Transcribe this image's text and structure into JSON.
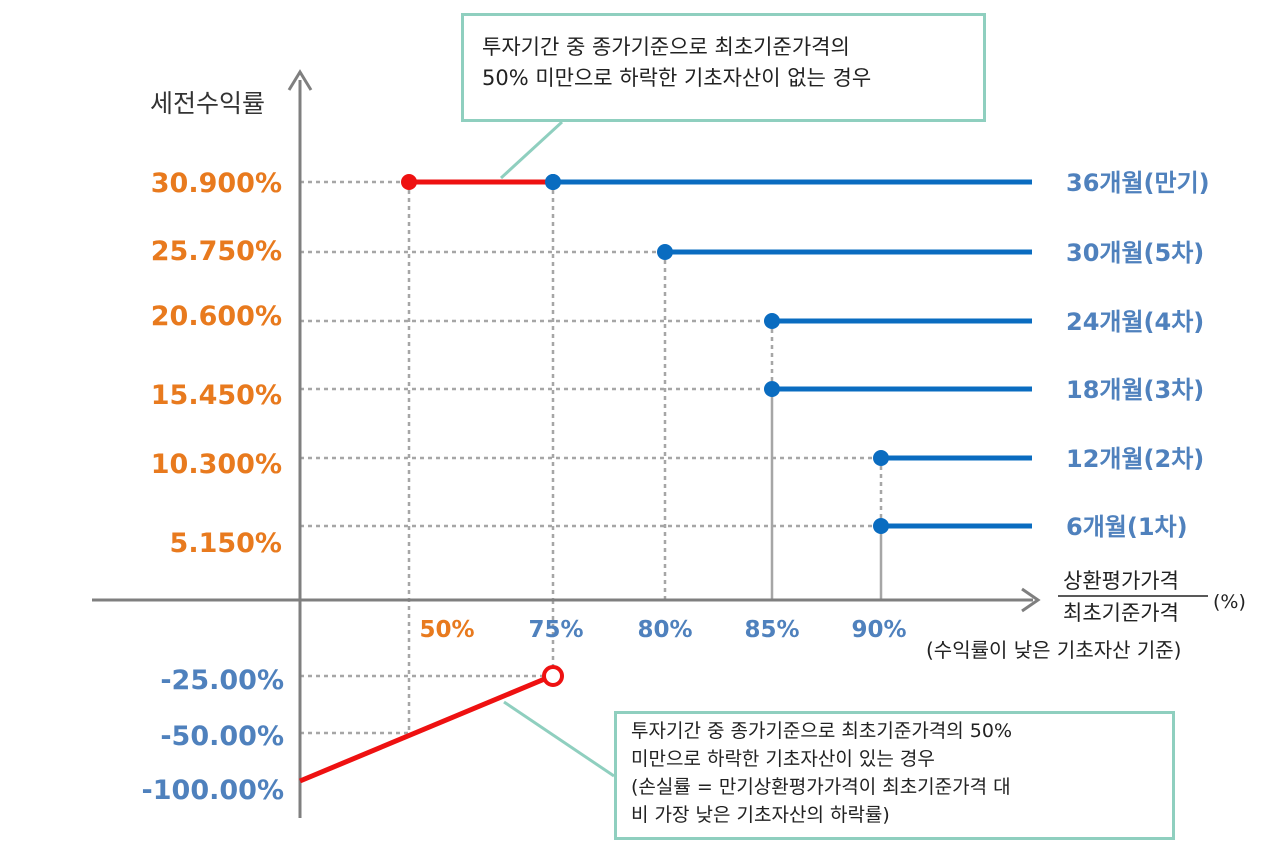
{
  "chart_data": {
    "type": "line",
    "ylabel": "세전수익률",
    "xlabel_top": "상환평가가격",
    "xlabel_bottom": "최초기준가격",
    "xlabel_unit": "(%)",
    "xlabel_note": "(수익률이 낮은 기초자산 기준)",
    "x_ticks": [
      "50%",
      "75%",
      "80%",
      "85%",
      "90%"
    ],
    "y_ticks_positive": [
      "30.900%",
      "25.750%",
      "20.600%",
      "15.450%",
      "10.300%",
      "5.150%"
    ],
    "y_ticks_negative": [
      "-25.00%",
      "-50.00%",
      "-100.00%"
    ],
    "series": [
      {
        "name": "36개월(만기)",
        "x": 75,
        "y": 30.9
      },
      {
        "name": "30개월(5차)",
        "x": 80,
        "y": 25.75
      },
      {
        "name": "24개월(4차)",
        "x": 85,
        "y": 20.6
      },
      {
        "name": "18개월(3차)",
        "x": 85,
        "y": 15.45
      },
      {
        "name": "12개월(2차)",
        "x": 90,
        "y": 10.3
      },
      {
        "name": "6개월(1차)",
        "x": 90,
        "y": 5.15
      }
    ],
    "maturity_no_breach": {
      "from_x": 50,
      "to_x": 75,
      "y": 30.9
    },
    "maturity_breach": {
      "from_x": 0,
      "from_y": -100,
      "to_x": 75,
      "to_y": -25
    }
  },
  "notes": {
    "top": [
      "투자기간 중 종가기준으로 최초기준가격의",
      "50% 미만으로 하락한 기초자산이 없는 경우"
    ],
    "bottom": [
      "투자기간 중 종가기준으로 최초기준가격의 50%",
      "미만으로 하락한 기초자산이 있는 경우",
      "(손실률 = 만기상환평가가격이 최초기준가격 대",
      "비 가장 낮은 기초자산의 하락률)"
    ]
  },
  "colors": {
    "orange": "#e87a1e",
    "blue": "#4f81bd",
    "line_blue": "#0a6cc0",
    "red": "#ee1111",
    "axis": "#7f7f7f",
    "grid": "#a6a6a6",
    "note_border": "#8fcfbf"
  }
}
